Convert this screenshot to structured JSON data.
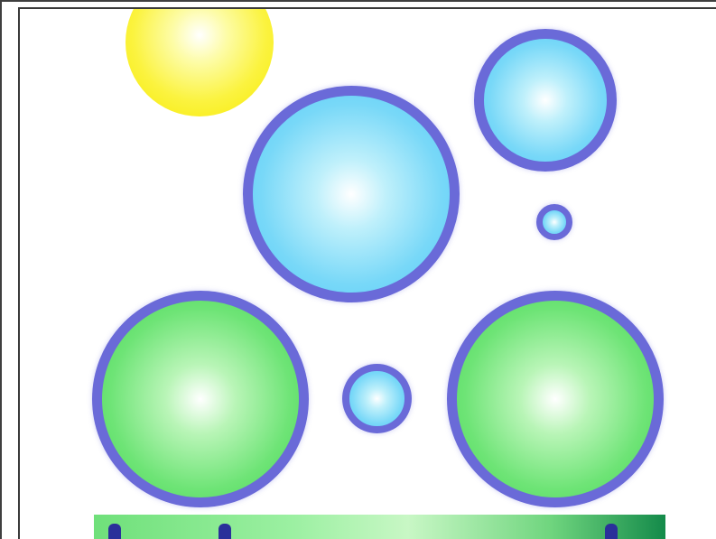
{
  "scene": {
    "balls": [
      {
        "name": "yellow-ball",
        "color": "yellow"
      },
      {
        "name": "blue-ball-large",
        "color": "blue"
      },
      {
        "name": "blue-ball-top-right",
        "color": "blue"
      },
      {
        "name": "blue-ball-tiny",
        "color": "blue"
      },
      {
        "name": "blue-ball-small",
        "color": "blue"
      },
      {
        "name": "green-ball-left",
        "color": "green"
      },
      {
        "name": "green-ball-right",
        "color": "green"
      }
    ],
    "colors": {
      "ring": "#6a6ad8",
      "blue_fill": "#58cdf4",
      "green_fill": "#49d75a",
      "yellow_fill": "#f7ea00",
      "bar_dark": "#2a2f9a"
    }
  }
}
